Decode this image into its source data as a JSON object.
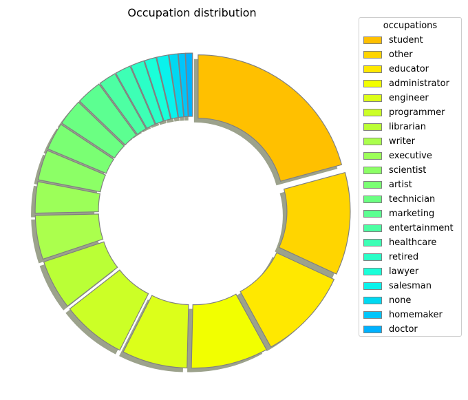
{
  "chart_data": {
    "type": "pie",
    "subtype": "donut",
    "title": "Occupation distribution",
    "legend_title": "occupations",
    "legend_placement": "right",
    "categories": [
      "student",
      "other",
      "educator",
      "administrator",
      "engineer",
      "programmer",
      "librarian",
      "writer",
      "executive",
      "scientist",
      "artist",
      "technician",
      "marketing",
      "entertainment",
      "healthcare",
      "retired",
      "lawyer",
      "salesman",
      "none",
      "homemaker",
      "doctor"
    ],
    "values": [
      196,
      105,
      95,
      79,
      67,
      66,
      51,
      45,
      32,
      31,
      28,
      27,
      26,
      18,
      16,
      14,
      12,
      12,
      9,
      7,
      7
    ],
    "colors": [
      "#FFC000",
      "#FFD500",
      "#FFE800",
      "#F2FF00",
      "#DCFF1A",
      "#CCFF26",
      "#BAFF36",
      "#ABFF4D",
      "#9CFF59",
      "#8CFF66",
      "#7AFF73",
      "#6BFF82",
      "#5CFF91",
      "#4DFFA3",
      "#3DFFB5",
      "#2BFFC7",
      "#1AFFD9",
      "#0AF2EC",
      "#00D9F2",
      "#00C5FA",
      "#00B2FF"
    ],
    "explode": 0.06
  }
}
